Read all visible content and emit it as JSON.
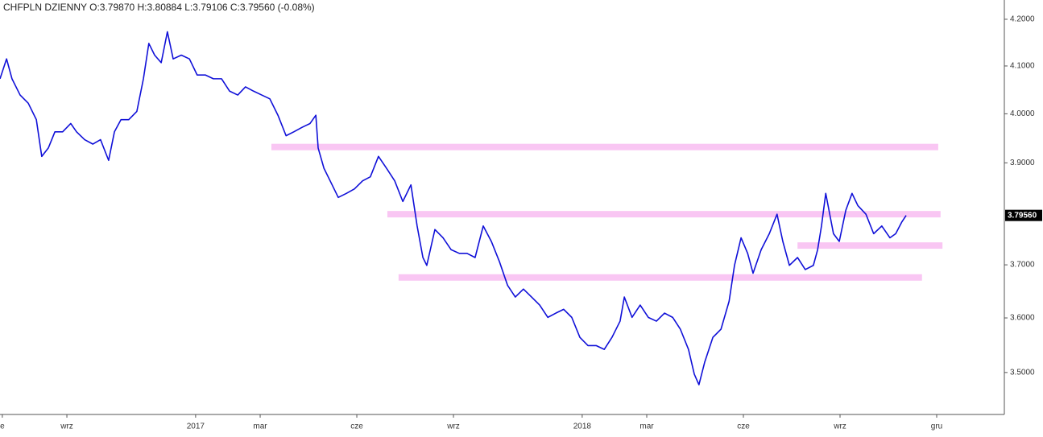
{
  "chart_data": {
    "type": "line",
    "title": "CHFPLN  DZIENNY  O:3.79870  H:3.80884  L:3.79106  C:3.79560  (-0.08%)",
    "log_scale": true,
    "color": "#1010d8",
    "x": [
      2016.494,
      2016.511,
      2016.525,
      2016.546,
      2016.567,
      2016.588,
      2016.602,
      2016.619,
      2016.636,
      2016.656,
      2016.677,
      2016.692,
      2016.713,
      2016.734,
      2016.754,
      2016.775,
      2016.79,
      2016.807,
      2016.827,
      2016.848,
      2016.865,
      2016.879,
      2016.894,
      2016.911,
      2016.927,
      2016.942,
      2016.963,
      2016.984,
      2017.004,
      2017.025,
      2017.046,
      2017.067,
      2017.088,
      2017.109,
      2017.129,
      2017.15,
      2017.171,
      2017.192,
      2017.213,
      2017.234,
      2017.254,
      2017.275,
      2017.296,
      2017.311,
      2017.317,
      2017.332,
      2017.348,
      2017.369,
      2017.39,
      2017.411,
      2017.432,
      2017.452,
      2017.473,
      2017.494,
      2017.515,
      2017.536,
      2017.557,
      2017.573,
      2017.588,
      2017.598,
      2017.619,
      2017.64,
      2017.661,
      2017.682,
      2017.702,
      2017.723,
      2017.744,
      2017.765,
      2017.786,
      2017.807,
      2017.827,
      2017.848,
      2017.869,
      2017.89,
      2017.911,
      2017.932,
      2017.952,
      2017.973,
      2017.994,
      2018.015,
      2018.036,
      2018.057,
      2018.077,
      2018.098,
      2018.109,
      2018.129,
      2018.15,
      2018.171,
      2018.192,
      2018.213,
      2018.234,
      2018.254,
      2018.275,
      2018.29,
      2018.302,
      2018.317,
      2018.338,
      2018.359,
      2018.38,
      2018.394,
      2018.411,
      2018.428,
      2018.442,
      2018.463,
      2018.484,
      2018.504,
      2018.519,
      2018.536,
      2018.557,
      2018.577,
      2018.598,
      2018.609,
      2018.619,
      2018.63,
      2018.65,
      2018.665,
      2018.682,
      2018.698,
      2018.713,
      2018.734,
      2018.754,
      2018.775,
      2018.796,
      2018.811,
      2018.827,
      2018.838
    ],
    "values": [
      4.073,
      4.115,
      4.073,
      4.039,
      4.022,
      3.988,
      3.913,
      3.93,
      3.963,
      3.963,
      3.98,
      3.963,
      3.947,
      3.938,
      3.947,
      3.905,
      3.963,
      3.988,
      3.988,
      4.005,
      4.073,
      4.148,
      4.123,
      4.107,
      4.173,
      4.115,
      4.123,
      4.115,
      4.081,
      4.081,
      4.073,
      4.073,
      4.047,
      4.039,
      4.056,
      4.047,
      4.039,
      4.031,
      3.997,
      3.955,
      3.963,
      3.972,
      3.98,
      3.997,
      3.93,
      3.889,
      3.864,
      3.831,
      3.839,
      3.848,
      3.864,
      3.872,
      3.913,
      3.889,
      3.864,
      3.823,
      3.856,
      3.775,
      3.714,
      3.699,
      3.768,
      3.752,
      3.729,
      3.722,
      3.722,
      3.714,
      3.775,
      3.745,
      3.706,
      3.661,
      3.639,
      3.654,
      3.639,
      3.624,
      3.601,
      3.609,
      3.616,
      3.601,
      3.564,
      3.549,
      3.549,
      3.542,
      3.564,
      3.594,
      3.639,
      3.601,
      3.624,
      3.601,
      3.594,
      3.609,
      3.601,
      3.579,
      3.542,
      3.497,
      3.478,
      3.519,
      3.564,
      3.579,
      3.631,
      3.699,
      3.752,
      3.722,
      3.684,
      3.729,
      3.76,
      3.798,
      3.745,
      3.699,
      3.714,
      3.691,
      3.699,
      3.729,
      3.775,
      3.839,
      3.76,
      3.745,
      3.806,
      3.839,
      3.815,
      3.798,
      3.76,
      3.775,
      3.752,
      3.76,
      3.783,
      3.7956
    ],
    "last_value_label": "3.79560",
    "levels": [
      {
        "value": 3.932,
        "x": [
          2017.196,
          2018.921
        ],
        "color": "#f9c6f3"
      },
      {
        "value": 3.798,
        "x": [
          2017.496,
          2018.927
        ],
        "color": "#f9c6f3"
      },
      {
        "value": 3.737,
        "x": [
          2018.557,
          2018.932
        ],
        "color": "#f9c6f3"
      },
      {
        "value": 3.676,
        "x": [
          2017.525,
          2018.879
        ],
        "color": "#f9c6f3"
      }
    ],
    "xlim": [
      2016.494,
      2019.092
    ],
    "ylim": [
      3.425,
      4.242
    ],
    "xticks": [
      {
        "value": 2016.5,
        "label": "e"
      },
      {
        "value": 2016.667,
        "label": "wrz"
      },
      2017,
      {
        "value": 2017.167,
        "label": "mar"
      },
      {
        "value": 2017.417,
        "label": "cze"
      },
      {
        "value": 2017.667,
        "label": "wrz"
      },
      2018,
      {
        "value": 2018.167,
        "label": "mar"
      },
      {
        "value": 2018.417,
        "label": "cze"
      },
      {
        "value": 2018.667,
        "label": "wrz"
      },
      {
        "value": 2018.917,
        "label": "gru"
      }
    ],
    "yticks": [
      {
        "value": 4.2,
        "label": "4.2000"
      },
      {
        "value": 4.1,
        "label": "4.1000"
      },
      {
        "value": 4.0,
        "label": "4.0000"
      },
      {
        "value": 3.9,
        "label": "3.9000"
      },
      {
        "value": 3.7,
        "label": "3.7000"
      },
      {
        "value": 3.6,
        "label": "3.6000"
      },
      {
        "value": 3.5,
        "label": "3.5000"
      }
    ]
  }
}
